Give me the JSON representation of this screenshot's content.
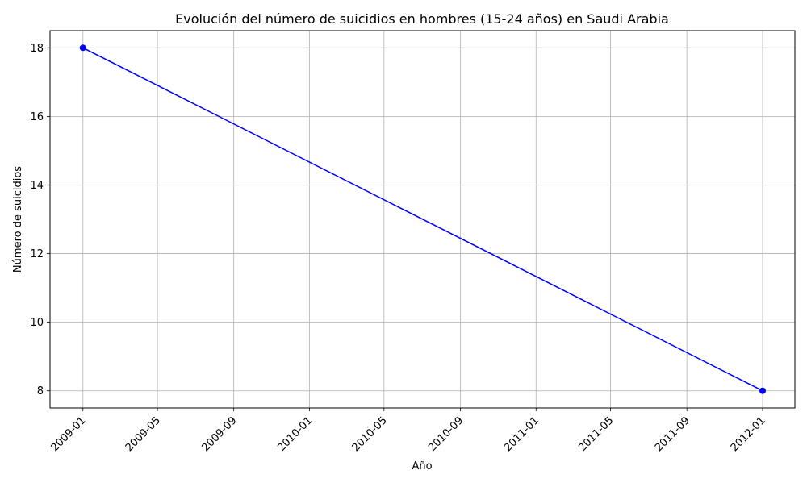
{
  "chart_data": {
    "type": "line",
    "title": "Evolución del número de suicidios en hombres (15-24 años) en Saudi Arabia",
    "xlabel": "Año",
    "ylabel": "Número de suicidios",
    "x": [
      "2009-01-01",
      "2012-01-01"
    ],
    "series": [
      {
        "values": [
          18,
          8
        ],
        "color": "#0000ff",
        "marker": "circle"
      }
    ],
    "xlim": [
      "2008-11-09",
      "2012-02-22"
    ],
    "ylim": [
      7.5,
      18.5
    ],
    "xticks": [
      "2009-01",
      "2009-05",
      "2009-09",
      "2010-01",
      "2010-05",
      "2010-09",
      "2011-01",
      "2011-05",
      "2011-09",
      "2012-01"
    ],
    "yticks": [
      8,
      10,
      12,
      14,
      16,
      18
    ],
    "grid": true,
    "grid_color": "#b0b0b0",
    "x_tick_rotation": 45
  }
}
